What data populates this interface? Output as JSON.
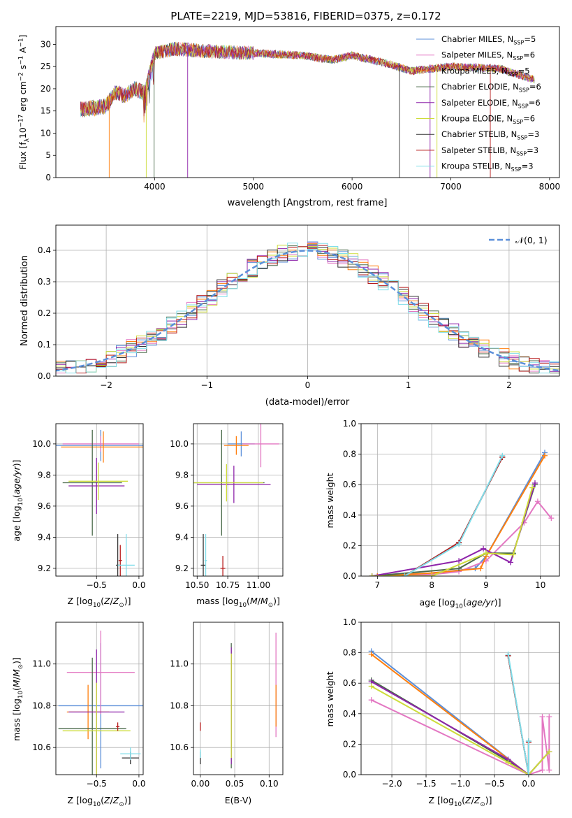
{
  "figure_title": "PLATE=2219, MJD=53816, FIBERID=0375, z=0.172",
  "colors": {
    "Chabrier MILES": "#5b8fd9",
    "Salpeter MILES": "#e377c2",
    "Kroupa MILES": "#ff7f0e",
    "Chabrier ELODIE": "#4a6a4a",
    "Salpeter ELODIE": "#8e24aa",
    "Kroupa ELODIE": "#cddc39",
    "Chabrier STELIB": "#333333",
    "Salpeter STELIB": "#b71c1c",
    "Kroupa STELIB": "#80deea"
  },
  "chart_data": [
    {
      "id": "spectrum",
      "type": "line",
      "xlabel": "wavelength [Angstrom, rest frame]",
      "ylabel": "Flux [f_λ10^-17 erg cm^-2 s^-1 A^-1]",
      "xlim": [
        3000,
        8100
      ],
      "ylim": [
        0,
        34
      ],
      "xticks": [
        4000,
        5000,
        6000,
        7000,
        8000
      ],
      "yticks": [
        0,
        5,
        10,
        15,
        20,
        25,
        30
      ],
      "legend": "top-right",
      "series": [
        {
          "name": "Chabrier MILES, N_SSP=5"
        },
        {
          "name": "Salpeter MILES, N_SSP=6"
        },
        {
          "name": "Kroupa MILES, N_SSP=5"
        },
        {
          "name": "Chabrier ELODIE, N_SSP=6"
        },
        {
          "name": "Salpeter ELODIE, N_SSP=6"
        },
        {
          "name": "Kroupa ELODIE, N_SSP=6"
        },
        {
          "name": "Chabrier STELIB, N_SSP=3"
        },
        {
          "name": "Salpeter STELIB, N_SSP=3"
        },
        {
          "name": "Kroupa STELIB, N_SSP=3"
        }
      ],
      "shape": [
        [
          3250,
          15.3
        ],
        [
          3500,
          16
        ],
        [
          3600,
          19
        ],
        [
          3700,
          18.5
        ],
        [
          3800,
          20
        ],
        [
          3900,
          19
        ],
        [
          4000,
          28
        ],
        [
          4200,
          29
        ],
        [
          4500,
          28.5
        ],
        [
          5000,
          28
        ],
        [
          5500,
          27.5
        ],
        [
          5800,
          26.5
        ],
        [
          6000,
          27.5
        ],
        [
          6300,
          26
        ],
        [
          6600,
          24
        ],
        [
          7000,
          25
        ],
        [
          7500,
          24.5
        ],
        [
          7850,
          22
        ]
      ]
    },
    {
      "id": "residuals",
      "type": "histogram",
      "xlabel": "(data-model)/error",
      "ylabel": "Normed distribution",
      "xlim": [
        -2.5,
        2.5
      ],
      "ylim": [
        0,
        0.48
      ],
      "xticks": [
        -2,
        -1,
        0,
        1,
        2
      ],
      "yticks": [
        0.0,
        0.1,
        0.2,
        0.3,
        0.4
      ],
      "legend": "top-right",
      "gaussian_label": "N(0,1)",
      "bin_width": 0.1
    },
    {
      "id": "age-vs-Z",
      "type": "errorbar",
      "xlabel": "Z [log10(Z/Zsun)]",
      "ylabel": "age  [log10(age/yr)]",
      "xlim": [
        -0.98,
        0.05
      ],
      "ylim": [
        9.15,
        10.13
      ],
      "xticks": [
        -0.5,
        0.0
      ],
      "yticks": [
        9.2,
        9.4,
        9.6,
        9.8,
        10.0
      ],
      "points": [
        {
          "model": "Chabrier MILES",
          "x": -0.45,
          "y": 9.99,
          "xerr": 0.55,
          "yerr": 0.1
        },
        {
          "model": "Salpeter MILES",
          "x": -0.45,
          "y": 10.0,
          "xerr": 0.45,
          "yerr": 0.05
        },
        {
          "model": "Kroupa MILES",
          "x": -0.42,
          "y": 9.98,
          "xerr": 0.5,
          "yerr": 0.1
        },
        {
          "model": "Chabrier ELODIE",
          "x": -0.55,
          "y": 9.75,
          "xerr": 0.35,
          "yerr": 0.34
        },
        {
          "model": "Salpeter ELODIE",
          "x": -0.5,
          "y": 9.73,
          "xerr": 0.33,
          "yerr": 0.18
        },
        {
          "model": "Kroupa ELODIE",
          "x": -0.48,
          "y": 9.76,
          "xerr": 0.35,
          "yerr": 0.12
        },
        {
          "model": "Chabrier STELIB",
          "x": -0.25,
          "y": 9.22,
          "xerr": 0.02,
          "yerr": 0.2
        },
        {
          "model": "Salpeter STELIB",
          "x": -0.22,
          "y": 9.25,
          "xerr": 0.02,
          "yerr": 0.1
        },
        {
          "model": "Kroupa STELIB",
          "x": -0.15,
          "y": 9.22,
          "xerr": 0.1,
          "yerr": 0.2
        }
      ]
    },
    {
      "id": "age-vs-mass",
      "type": "errorbar",
      "xlabel": "mass [log10(M/Msun)]",
      "ylabel": "",
      "xlim": [
        10.47,
        11.2
      ],
      "ylim": [
        9.15,
        10.13
      ],
      "xticks": [
        10.5,
        10.75,
        11.0
      ],
      "yticks": [
        9.2,
        9.4,
        9.6,
        9.8,
        10.0
      ],
      "points": [
        {
          "model": "Chabrier MILES",
          "x": 10.86,
          "y": 10.0,
          "xerr": 0.11,
          "yerr": 0.08
        },
        {
          "model": "Salpeter MILES",
          "x": 11.02,
          "y": 10.0,
          "xerr": 0.15,
          "yerr": 0.15
        },
        {
          "model": "Kroupa MILES",
          "x": 10.82,
          "y": 9.99,
          "xerr": 0.1,
          "yerr": 0.06
        },
        {
          "model": "Chabrier ELODIE",
          "x": 10.7,
          "y": 9.75,
          "xerr": 0.35,
          "yerr": 0.34
        },
        {
          "model": "Salpeter ELODIE",
          "x": 10.8,
          "y": 9.74,
          "xerr": 0.3,
          "yerr": 0.12
        },
        {
          "model": "Kroupa ELODIE",
          "x": 10.74,
          "y": 9.75,
          "xerr": 0.3,
          "yerr": 0.12
        },
        {
          "model": "Chabrier STELIB",
          "x": 10.55,
          "y": 9.22,
          "xerr": 0.02,
          "yerr": 0.2
        },
        {
          "model": "Salpeter STELIB",
          "x": 10.71,
          "y": 9.2,
          "xerr": 0.02,
          "yerr": 0.08
        },
        {
          "model": "Kroupa STELIB",
          "x": 10.57,
          "y": 9.25,
          "xerr": 0.01,
          "yerr": 0.17
        }
      ]
    },
    {
      "id": "mass-weight-vs-age",
      "type": "line",
      "xlabel": "age  [log10(age/yr)]",
      "ylabel": "mass weight",
      "xlim": [
        6.7,
        10.35
      ],
      "ylim": [
        0,
        1
      ],
      "xticks": [
        7,
        8,
        9,
        10
      ],
      "yticks": [
        0.0,
        0.2,
        0.4,
        0.6,
        0.8,
        1.0
      ],
      "series": [
        {
          "model": "Chabrier MILES",
          "x": [
            7.0,
            8.0,
            8.8,
            9.0,
            10.08
          ],
          "y": [
            0.0,
            0.02,
            0.05,
            0.13,
            0.81
          ]
        },
        {
          "model": "Salpeter MILES",
          "x": [
            6.9,
            8.0,
            8.5,
            9.0,
            9.7,
            9.95,
            10.2
          ],
          "y": [
            0.0,
            0.01,
            0.03,
            0.1,
            0.35,
            0.49,
            0.38
          ]
        },
        {
          "model": "Kroupa MILES",
          "x": [
            7.0,
            8.0,
            8.9,
            9.0,
            10.08
          ],
          "y": [
            0.0,
            0.02,
            0.05,
            0.13,
            0.79
          ]
        },
        {
          "model": "Chabrier ELODIE",
          "x": [
            6.9,
            8.5,
            9.0,
            9.5,
            9.9
          ],
          "y": [
            0.0,
            0.05,
            0.15,
            0.15,
            0.6
          ]
        },
        {
          "model": "Salpeter ELODIE",
          "x": [
            6.9,
            8.5,
            8.95,
            9.45,
            9.9
          ],
          "y": [
            0.0,
            0.1,
            0.18,
            0.09,
            0.61
          ]
        },
        {
          "model": "Kroupa ELODIE",
          "x": [
            6.9,
            8.0,
            9.0,
            9.5,
            9.85
          ],
          "y": [
            0.0,
            0.0,
            0.15,
            0.14,
            0.58
          ]
        },
        {
          "model": "Chabrier STELIB",
          "x": [
            7.5,
            8.5,
            9.3
          ],
          "y": [
            0.0,
            0.22,
            0.78
          ]
        },
        {
          "model": "Salpeter STELIB",
          "x": [
            7.5,
            8.5,
            9.3
          ],
          "y": [
            0.0,
            0.22,
            0.78
          ]
        },
        {
          "model": "Kroupa STELIB",
          "x": [
            7.5,
            8.5,
            9.3
          ],
          "y": [
            0.0,
            0.21,
            0.79
          ]
        }
      ]
    },
    {
      "id": "mass-vs-Z",
      "type": "errorbar",
      "xlabel": "Z [log10(Z/Zsun)]",
      "ylabel": "mass [log10(M/Msun)]",
      "xlim": [
        -0.98,
        0.05
      ],
      "ylim": [
        10.47,
        11.2
      ],
      "xticks": [
        -0.5,
        0.0
      ],
      "yticks": [
        10.6,
        10.8,
        11.0
      ],
      "points": [
        {
          "model": "Chabrier MILES",
          "x": -0.45,
          "y": 10.8,
          "xerr": 0.5,
          "yerr": 0.3
        },
        {
          "model": "Salpeter MILES",
          "x": -0.45,
          "y": 10.96,
          "xerr": 0.4,
          "yerr": 0.2
        },
        {
          "model": "Kroupa MILES",
          "x": -0.6,
          "y": 10.77,
          "xerr": 0.25,
          "yerr": 0.13
        },
        {
          "model": "Chabrier ELODIE",
          "x": -0.55,
          "y": 10.69,
          "xerr": 0.4,
          "yerr": 0.34
        },
        {
          "model": "Salpeter ELODIE",
          "x": -0.5,
          "y": 10.77,
          "xerr": 0.33,
          "yerr": 0.3
        },
        {
          "model": "Kroupa ELODIE",
          "x": -0.5,
          "y": 10.68,
          "xerr": 0.4,
          "yerr": 0.23
        },
        {
          "model": "Chabrier STELIB",
          "x": -0.1,
          "y": 10.55,
          "xerr": 0.1,
          "yerr": 0.03
        },
        {
          "model": "Salpeter STELIB",
          "x": -0.25,
          "y": 10.7,
          "xerr": 0.02,
          "yerr": 0.02
        },
        {
          "model": "Kroupa STELIB",
          "x": -0.1,
          "y": 10.57,
          "xerr": 0.12,
          "yerr": 0.03
        }
      ]
    },
    {
      "id": "mass-vs-EBV",
      "type": "errorbar",
      "xlabel": "E(B-V)",
      "ylabel": "",
      "xlim": [
        -0.01,
        0.12
      ],
      "ylim": [
        10.47,
        11.2
      ],
      "xticks": [
        0.0,
        0.05,
        0.1
      ],
      "yticks": [
        10.6,
        10.8,
        11.0
      ],
      "points": [
        {
          "model": "Chabrier MILES",
          "x": 0.11,
          "y": 10.8,
          "xerr": 0.0,
          "yerr": 0.1
        },
        {
          "model": "Salpeter MILES",
          "x": 0.11,
          "y": 10.9,
          "xerr": 0.0,
          "yerr": 0.25
        },
        {
          "model": "Kroupa MILES",
          "x": 0.11,
          "y": 10.8,
          "xerr": 0.0,
          "yerr": 0.1
        },
        {
          "model": "Chabrier ELODIE",
          "x": 0.045,
          "y": 10.8,
          "xerr": 0.0,
          "yerr": 0.3
        },
        {
          "model": "Salpeter ELODIE",
          "x": 0.045,
          "y": 10.8,
          "xerr": 0.0,
          "yerr": 0.28
        },
        {
          "model": "Kroupa ELODIE",
          "x": 0.045,
          "y": 10.8,
          "xerr": 0.0,
          "yerr": 0.25
        },
        {
          "model": "Chabrier STELIB",
          "x": 0.0,
          "y": 10.55,
          "xerr": 0.0,
          "yerr": 0.03
        },
        {
          "model": "Salpeter STELIB",
          "x": 0.0,
          "y": 10.7,
          "xerr": 0.0,
          "yerr": 0.02
        },
        {
          "model": "Kroupa STELIB",
          "x": 0.0,
          "y": 10.57,
          "xerr": 0.0,
          "yerr": 0.02
        }
      ]
    },
    {
      "id": "mass-weight-vs-Z",
      "type": "line",
      "xlabel": "Z [log10(Z/Zsun)]",
      "ylabel": "mass weight",
      "xlim": [
        -2.45,
        0.45
      ],
      "ylim": [
        0,
        1
      ],
      "xticks": [
        -2.0,
        -1.5,
        -1.0,
        -0.5,
        0.0
      ],
      "yticks": [
        0.0,
        0.2,
        0.4,
        0.6,
        0.8,
        1.0
      ],
      "series": [
        {
          "model": "Chabrier MILES",
          "x": [
            -2.3,
            0.0
          ],
          "y": [
            0.81,
            0.0
          ]
        },
        {
          "model": "Salpeter MILES",
          "x": [
            -2.3,
            0.0,
            0.2,
            0.2,
            0.3,
            0.3
          ],
          "y": [
            0.49,
            0.0,
            0.03,
            0.38,
            0.03,
            0.38
          ]
        },
        {
          "model": "Kroupa MILES",
          "x": [
            -2.3,
            0.0
          ],
          "y": [
            0.79,
            0.0
          ]
        },
        {
          "model": "Chabrier ELODIE",
          "x": [
            -2.3,
            -0.3,
            0.0,
            0.3
          ],
          "y": [
            0.62,
            0.09,
            0.0,
            0.15
          ]
        },
        {
          "model": "Salpeter ELODIE",
          "x": [
            -2.3,
            -0.3,
            0.0,
            0.3
          ],
          "y": [
            0.61,
            0.1,
            0.0,
            0.15
          ]
        },
        {
          "model": "Kroupa ELODIE",
          "x": [
            -2.3,
            -0.3,
            0.0,
            0.3
          ],
          "y": [
            0.58,
            0.08,
            0.0,
            0.15
          ]
        },
        {
          "model": "Chabrier STELIB",
          "x": [
            -0.3,
            0.0,
            0.0
          ],
          "y": [
            0.78,
            0.0,
            0.22
          ]
        },
        {
          "model": "Salpeter STELIB",
          "x": [
            -0.3,
            0.0,
            0.0
          ],
          "y": [
            0.78,
            0.0,
            0.21
          ]
        },
        {
          "model": "Kroupa STELIB",
          "x": [
            -0.3,
            0.0,
            0.0
          ],
          "y": [
            0.79,
            0.0,
            0.22
          ]
        }
      ]
    }
  ]
}
